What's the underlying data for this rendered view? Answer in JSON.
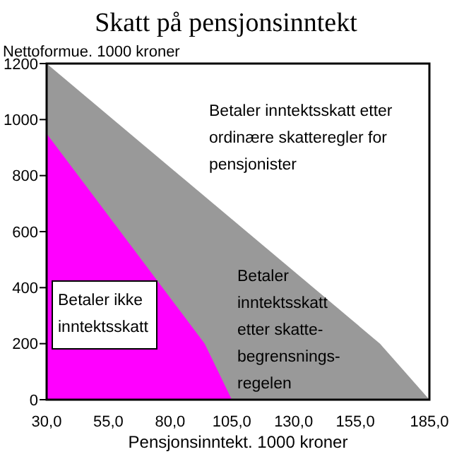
{
  "chart_data": {
    "type": "area",
    "title": "Skatt på pensjonsinntekt",
    "ylabel": "Nettoformue. 1000 kroner",
    "xlabel": "Pensjonsinntekt. 1000 kroner",
    "series": [
      {
        "color": "#999999",
        "x": [
          30,
          165,
          185
        ],
        "values": [
          1200,
          200,
          0
        ]
      },
      {
        "color": "#ff00ff",
        "x": [
          30,
          94,
          105
        ],
        "values": [
          950,
          200,
          0
        ]
      }
    ],
    "xlim": [
      30,
      185
    ],
    "xticks": [
      {
        "value": 30,
        "label": "30,0"
      },
      {
        "value": 55,
        "label": "55,0"
      },
      {
        "value": 80,
        "label": "80,0"
      },
      {
        "value": 105,
        "label": "105,0"
      },
      {
        "value": 130,
        "label": "130,0"
      },
      {
        "value": 155,
        "label": "155,0"
      },
      {
        "value": 185,
        "label": "185,0"
      }
    ],
    "ylim": [
      0,
      1200
    ],
    "yticks": [
      0,
      200,
      400,
      600,
      800,
      1000,
      1200
    ],
    "annotations": [
      "Betaler inntektsskatt etter\nordinære skatteregler for\npensjonister",
      "Betaler ikke\ninntektsskatt",
      "Betaler\ninntektsskatt\netter skatte-\nbegrensnings-\nregelen"
    ]
  }
}
